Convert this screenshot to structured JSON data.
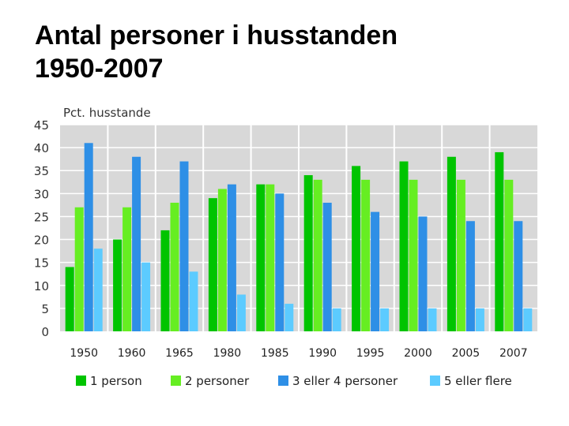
{
  "title": {
    "line1": "Antal personer i husstanden",
    "line2": "1950-2007"
  },
  "chart_data": {
    "type": "bar",
    "ylabel": "Pct. husstande",
    "ylim": [
      0,
      45
    ],
    "yticks": [
      0,
      5,
      10,
      15,
      20,
      25,
      30,
      35,
      40,
      45
    ],
    "grid": true,
    "legend_position": "bottom",
    "categories": [
      "1950",
      "1960",
      "1965",
      "1980",
      "1985",
      "1990",
      "1995",
      "2000",
      "2005",
      "2007"
    ],
    "series": [
      {
        "name": "1 person",
        "color": "#00c400",
        "values": [
          14,
          20,
          22,
          29,
          32,
          34,
          36,
          37,
          38,
          39
        ]
      },
      {
        "name": "2 personer",
        "color": "#66ee22",
        "values": [
          27,
          27,
          28,
          31,
          32,
          33,
          33,
          33,
          33,
          33
        ]
      },
      {
        "name": "3 eller 4 personer",
        "color": "#2e8fe6",
        "values": [
          41,
          38,
          37,
          32,
          30,
          28,
          26,
          25,
          24,
          24
        ]
      },
      {
        "name": "5 eller flere",
        "color": "#5ccbff",
        "values": [
          18,
          15,
          13,
          8,
          6,
          5,
          5,
          5,
          5,
          5
        ]
      }
    ]
  }
}
